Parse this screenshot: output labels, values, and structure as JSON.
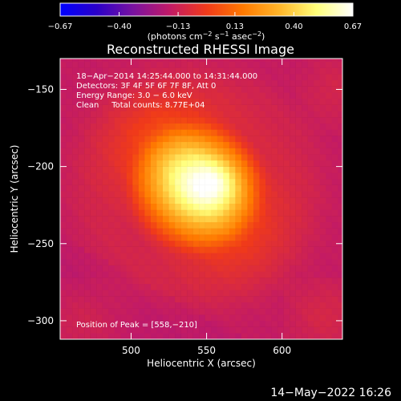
{
  "chart_data": {
    "type": "heatmap",
    "title": "Reconstructed RHESSI Image",
    "colorbar": {
      "colormap": [
        "#0000ff",
        "#2a00c8",
        "#7a12a0",
        "#c21a66",
        "#f03a1a",
        "#ff7a00",
        "#ffb62a",
        "#ffff7a",
        "#ffffff"
      ],
      "range": [
        -0.67,
        0.67
      ],
      "ticks": [
        -0.67,
        -0.4,
        -0.13,
        0.13,
        0.4,
        0.67
      ],
      "tick_labels": [
        "−0.67",
        "−0.40",
        "−0.13",
        "0.13",
        "0.40",
        "0.67"
      ],
      "label_prefix": "(photons cm",
      "label_sup1": "−2",
      "label_mid1": " s",
      "label_sup2": "−1",
      "label_mid2": " asec",
      "label_sup3": "−2",
      "label_suffix": ")"
    },
    "x_axis": {
      "label": "Heliocentric X (arcsec)",
      "range": [
        453,
        640
      ],
      "ticks": [
        500,
        550,
        600
      ],
      "tick_labels": [
        "500",
        "550",
        "600"
      ]
    },
    "y_axis": {
      "label": "Heliocentric Y (arcsec)",
      "range": [
        -312,
        -130
      ],
      "ticks": [
        -150,
        -200,
        -250,
        -300
      ],
      "tick_labels": [
        "−150",
        "−200",
        "−250",
        "−300"
      ]
    },
    "grid": false,
    "annotations": [
      "18−Apr−2014 14:25:44.000 to 14:31:44.000",
      "Detectors: 3F 4F 5F 6F 7F 8F, Att 0",
      "Energy Range: 3.0 − 6.0 keV",
      "Clean     Total counts: 8.77E+04"
    ],
    "peak_label": "Position of Peak = [558,−210]",
    "peak": {
      "x": 558,
      "y": -210,
      "value": 0.67
    },
    "source": {
      "center_x": 543,
      "center_y": -212,
      "major_sigma_arcsec": 30,
      "minor_sigma_arcsec": 24,
      "angle_deg": -45
    },
    "pixel_size_arcsec": 4,
    "background_value": -0.16,
    "ring": {
      "center_x": 543,
      "center_y": -214,
      "radius_x_arcsec": 72,
      "radius_y_arcsec": 68,
      "value": -0.1
    }
  },
  "footer": {
    "date": "14−May−2022 16:26"
  }
}
